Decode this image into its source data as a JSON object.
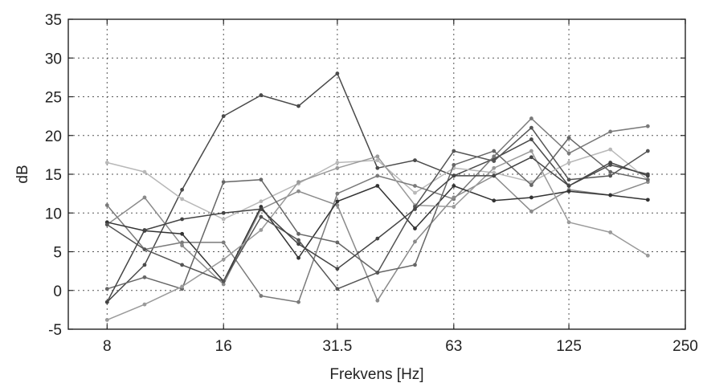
{
  "chart_data": {
    "type": "line",
    "xlabel": "Frekvens [Hz]",
    "ylabel": "dB",
    "x_scale": "log",
    "xlim": [
      6.35,
      250
    ],
    "ylim": [
      -5,
      35
    ],
    "x_tick_values": [
      8,
      16,
      31.5,
      63,
      125,
      250
    ],
    "x_tick_labels": [
      "8",
      "16",
      "31.5",
      "63",
      "125",
      "250"
    ],
    "y_tick_values": [
      -5,
      0,
      5,
      10,
      15,
      20,
      25,
      30,
      35
    ],
    "y_tick_labels": [
      "-5",
      "0",
      "5",
      "10",
      "15",
      "20",
      "25",
      "30",
      "35"
    ],
    "grid": true,
    "x": [
      8,
      10,
      12.5,
      16,
      20,
      25,
      31.5,
      40,
      50,
      63,
      80,
      100,
      125,
      160,
      200
    ],
    "series": [
      {
        "color": "#4a4a4a",
        "values": [
          -1.5,
          3.3,
          13.0,
          22.5,
          25.2,
          23.8,
          28.0,
          15.8,
          16.8,
          14.8,
          17.0,
          19.5,
          13.5,
          16.2,
          15.0
        ]
      },
      {
        "color": "#b8b8b8",
        "values": [
          16.5,
          15.3,
          11.8,
          9.2,
          11.5,
          13.8,
          16.5,
          16.8,
          12.6,
          15.8,
          15.2,
          14.0,
          16.5,
          18.2,
          14.3
        ]
      },
      {
        "color": "#7a7a7a",
        "values": [
          11.0,
          5.3,
          6.2,
          6.2,
          -0.7,
          -1.5,
          12.5,
          14.8,
          13.5,
          11.8,
          17.3,
          22.2,
          17.7,
          20.5,
          21.2
        ]
      },
      {
        "color": "#8a8a8a",
        "values": [
          8.5,
          12.0,
          5.8,
          0.8,
          10.5,
          12.8,
          11.0,
          -1.3,
          6.3,
          12.0,
          14.8,
          10.2,
          13.0,
          12.3,
          14.0
        ]
      },
      {
        "color": "#333333",
        "values": [
          8.8,
          7.7,
          7.3,
          1.2,
          10.8,
          4.2,
          11.5,
          13.5,
          8.0,
          13.5,
          11.6,
          12.0,
          12.8,
          12.3,
          11.7
        ]
      },
      {
        "color": "#666666",
        "values": [
          0.2,
          1.7,
          0.2,
          14.0,
          14.3,
          7.3,
          6.2,
          2.3,
          3.3,
          16.2,
          18.0,
          13.6,
          19.7,
          15.3,
          14.3
        ]
      },
      {
        "color": "#9a9a9a",
        "values": [
          -3.8,
          -1.8,
          0.5,
          4.0,
          7.8,
          14.0,
          15.8,
          17.3,
          11.0,
          10.8,
          15.8,
          18.0,
          8.8,
          7.5,
          4.5
        ]
      },
      {
        "color": "#555555",
        "values": [
          8.5,
          5.3,
          3.3,
          1.2,
          9.5,
          6.5,
          0.2,
          2.3,
          10.8,
          18.0,
          16.7,
          21.0,
          14.3,
          14.8,
          18.0
        ]
      },
      {
        "color": "#444444",
        "values": [
          -1.5,
          7.8,
          9.2,
          10.0,
          10.5,
          6.0,
          2.8,
          6.7,
          10.5,
          14.8,
          14.8,
          17.2,
          13.5,
          16.5,
          14.8
        ]
      }
    ]
  }
}
